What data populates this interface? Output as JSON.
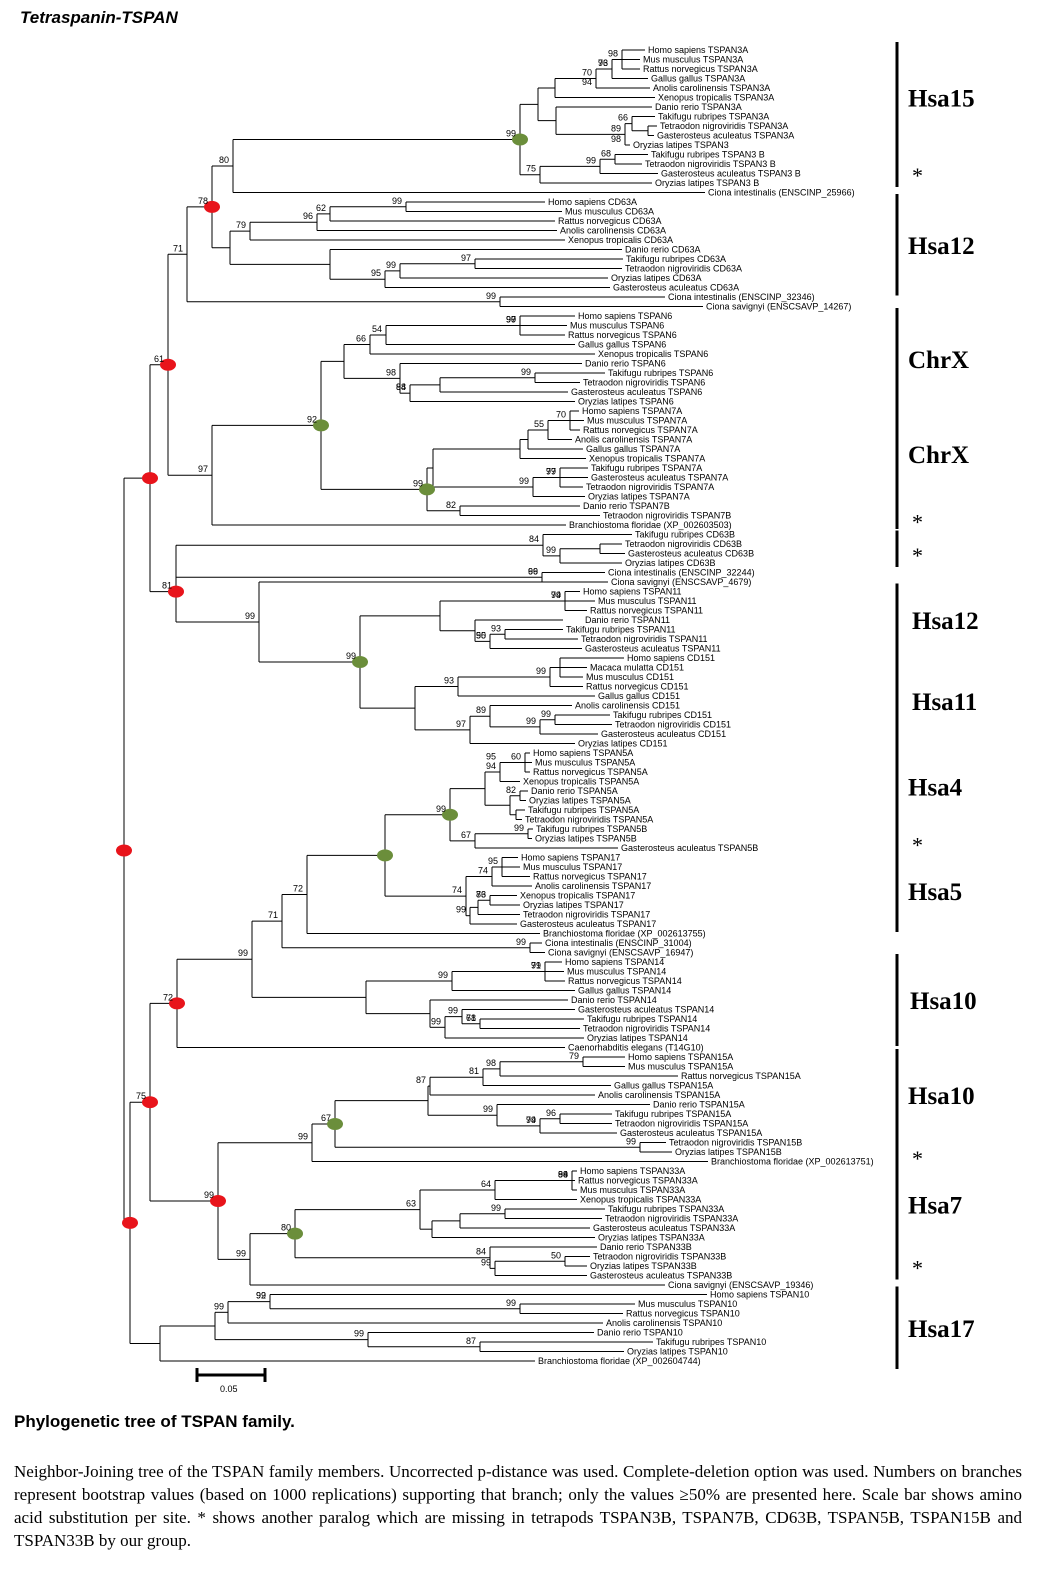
{
  "title": "Tetraspanin-TSPAN",
  "leaves": [
    "Homo sapiens TSPAN3A",
    "Mus musculus TSPAN3A",
    "Rattus norvegicus TSPAN3A",
    "Gallus gallus TSPAN3A",
    "Anolis carolinensis TSPAN3A",
    "Xenopus tropicalis TSPAN3A",
    "Danio rerio TSPAN3A",
    "Takifugu rubripes TSPAN3A",
    "Tetraodon nigroviridis TSPAN3A",
    "Gasterosteus aculeatus TSPAN3A",
    "Oryzias latipes TSPAN3",
    "Takifugu rubripes TSPAN3 B",
    "Tetraodon nigroviridis TSPAN3 B",
    "Gasterosteus aculeatus TSPAN3 B",
    "Oryzias latipes TSPAN3 B",
    "Ciona intestinalis (ENSCINP_25966)",
    "Homo sapiens CD63A",
    "Mus musculus CD63A",
    "Rattus norvegicus CD63A",
    "Anolis carolinensis CD63A",
    "Xenopus tropicalis CD63A",
    "Danio rerio CD63A",
    "Takifugu rubripes CD63A",
    "Tetraodon nigroviridis CD63A",
    "Oryzias latipes CD63A",
    "Gasterosteus aculeatus CD63A",
    "Ciona intestinalis (ENSCINP_32346)",
    "Ciona savignyi (ENSCSAVP_14267)",
    "Homo sapiens TSPAN6",
    "Mus musculus TSPAN6",
    "Rattus norvegicus TSPAN6",
    "Gallus gallus TSPAN6",
    "Xenopus tropicalis TSPAN6",
    "Danio rerio TSPAN6",
    "Takifugu rubripes TSPAN6",
    "Tetraodon nigroviridis TSPAN6",
    "Gasterosteus aculeatus TSPAN6",
    "Oryzias latipes TSPAN6",
    "Homo sapiens TSPAN7A",
    "Mus musculus TSPAN7A",
    "Rattus norvegicus TSPAN7A",
    "Anolis carolinensis TSPAN7A",
    "Gallus gallus TSPAN7A",
    "Xenopus tropicalis TSPAN7A",
    "Takifugu rubripes TSPAN7A",
    "Gasterosteus aculeatus TSPAN7A",
    "Tetraodon nigroviridis TSPAN7A",
    "Oryzias latipes TSPAN7A",
    "Danio rerio TSPAN7B",
    "Tetraodon nigroviridis TSPAN7B",
    "Branchiostoma floridae (XP_002603503)",
    "Takifugu rubripes CD63B",
    "Tetraodon nigroviridis CD63B",
    "Gasterosteus aculeatus CD63B",
    "Oryzias latipes CD63B",
    "Ciona intestinalis (ENSCINP_32244)",
    "Ciona savignyi (ENSCSAVP_4679)",
    "Homo sapiens TSPAN11",
    "Mus musculus TSPAN11",
    "Rattus norvegicus TSPAN11",
    "Danio rerio TSPAN11",
    "Takifugu rubripes TSPAN11",
    "Tetraodon nigroviridis TSPAN11",
    "Gasterosteus aculeatus TSPAN11",
    "Homo sapiens CD151",
    "Macaca mulatta CD151",
    "Mus musculus CD151",
    "Rattus norvegicus CD151",
    "Gallus gallus CD151",
    "Anolis carolinensis CD151",
    "Takifugu rubripes CD151",
    "Tetraodon nigroviridis CD151",
    "Gasterosteus aculeatus CD151",
    "Oryzias latipes CD151",
    "Homo sapiens TSPAN5A",
    "Mus musculus TSPAN5A",
    "Rattus norvegicus TSPAN5A",
    "Xenopus tropicalis TSPAN5A",
    "Danio rerio TSPAN5A",
    "Oryzias latipes TSPAN5A",
    "Takifugu rubripes TSPAN5A",
    "Tetraodon nigroviridis TSPAN5A",
    "Takifugu rubripes TSPAN5B",
    "Oryzias latipes TSPAN5B",
    "Gasterosteus aculeatus TSPAN5B",
    "Homo sapiens TSPAN17",
    "Mus musculus TSPAN17",
    "Rattus norvegicus TSPAN17",
    "Anolis carolinensis TSPAN17",
    "Xenopus tropicalis TSPAN17",
    "Oryzias latipes TSPAN17",
    "Tetraodon nigroviridis TSPAN17",
    "Gasterosteus aculeatus TSPAN17",
    "Branchiostoma floridae (XP_002613755)",
    "Ciona intestinalis (ENSCINP_31004)",
    "Ciona savignyi (ENSCSAVP_16947)",
    "Homo sapiens TSPAN14",
    "Mus musculus TSPAN14",
    "Rattus norvegicus TSPAN14",
    "Gallus gallus TSPAN14",
    "Danio rerio TSPAN14",
    "Gasterosteus aculeatus TSPAN14",
    "Takifugu rubripes TSPAN14",
    "Tetraodon nigroviridis TSPAN14",
    "Oryzias latipes TSPAN14",
    "Caenorhabditis elegans (T14G10)",
    "Homo sapiens TSPAN15A",
    "Mus musculus TSPAN15A",
    "Rattus norvegicus TSPAN15A",
    "Gallus gallus TSPAN15A",
    "Anolis carolinensis TSPAN15A",
    "Danio rerio TSPAN15A",
    "Takifugu rubripes TSPAN15A",
    "Tetraodon nigroviridis TSPAN15A",
    "Gasterosteus aculeatus TSPAN15A",
    "Tetraodon nigroviridis TSPAN15B",
    "Oryzias latipes TSPAN15B",
    "Branchiostoma floridae (XP_002613751)",
    "Homo sapiens TSPAN33A",
    "Rattus norvegicus TSPAN33A",
    "Mus musculus TSPAN33A",
    "Xenopus tropicalis TSPAN33A",
    "Takifugu rubripes TSPAN33A",
    "Tetraodon nigroviridis TSPAN33A",
    "Gasterosteus aculeatus TSPAN33A",
    "Oryzias latipes TSPAN33A",
    "Danio rerio TSPAN33B",
    "Tetraodon nigroviridis TSPAN33B",
    "Oryzias latipes TSPAN33B",
    "Gasterosteus aculeatus TSPAN33B",
    "Ciona savignyi (ENSCSAVP_19346)",
    "Homo sapiens TSPAN10",
    "Mus musculus TSPAN10",
    "Rattus norvegicus TSPAN10",
    "Anolis carolinensis TSPAN10",
    "Danio rerio TSPAN10",
    "Takifugu rubripes TSPAN10",
    "Oryzias latipes TSPAN10",
    "Branchiostoma floridae (XP_002604744)"
  ],
  "bootstrap_values": [
    "98",
    "76",
    "93",
    "70",
    "94",
    "66",
    "89",
    "98",
    "99",
    "68",
    "99",
    "75",
    "80",
    "99",
    "62",
    "96",
    "79",
    "97",
    "99",
    "95",
    "78",
    "71",
    "99",
    "99",
    "90",
    "97",
    "66",
    "54",
    "99",
    "98",
    "88",
    "94",
    "61",
    "70",
    "55",
    "99",
    "77",
    "99",
    "99",
    "82",
    "97",
    "92",
    "84",
    "99",
    "66",
    "99",
    "81",
    "99",
    "99",
    "74",
    "93",
    "95",
    "50",
    "99",
    "93",
    "99",
    "89",
    "99",
    "97",
    "99",
    "95",
    "60",
    "94",
    "82",
    "99",
    "99",
    "67",
    "95",
    "74",
    "76",
    "83",
    "99",
    "74",
    "72",
    "99",
    "71",
    "99",
    "99",
    "99",
    "71",
    "99",
    "78",
    "99",
    "61",
    "72",
    "79",
    "98",
    "81",
    "87",
    "99",
    "74",
    "99",
    "96",
    "67",
    "99",
    "99",
    "75",
    "99",
    "99",
    "84",
    "96",
    "64",
    "99",
    "63",
    "50",
    "99",
    "84",
    "80",
    "99",
    "99",
    "92",
    "99",
    "99",
    "99",
    "87"
  ],
  "chromosome_labels": [
    "Hsa15",
    "Hsa12",
    "ChrX",
    "ChrX",
    "Hsa12",
    "Hsa11",
    "Hsa4",
    "Hsa5",
    "Hsa10",
    "Hsa10",
    "Hsa7",
    "Hsa17"
  ],
  "paralog_marker": "*",
  "scale_label": "0.05",
  "node_colors": {
    "red": "#e8141b",
    "green": "#6b8e3b"
  },
  "caption": {
    "title": "Phylogenetic tree of TSPAN family.",
    "text": "Neighbor-Joining tree of the TSPAN family members. Uncorrected p-distance was used. Complete-deletion option was used. Numbers on branches represent bootstrap values (based on 1000 replications) supporting that branch; only the values ≥50% are presented here. Scale bar shows amino acid substitution per site. * shows another paralog which are missing in tetrapods TSPAN3B, TSPAN7B, CD63B, TSPAN5B, TSPAN15B and TSPAN33B by our group."
  }
}
